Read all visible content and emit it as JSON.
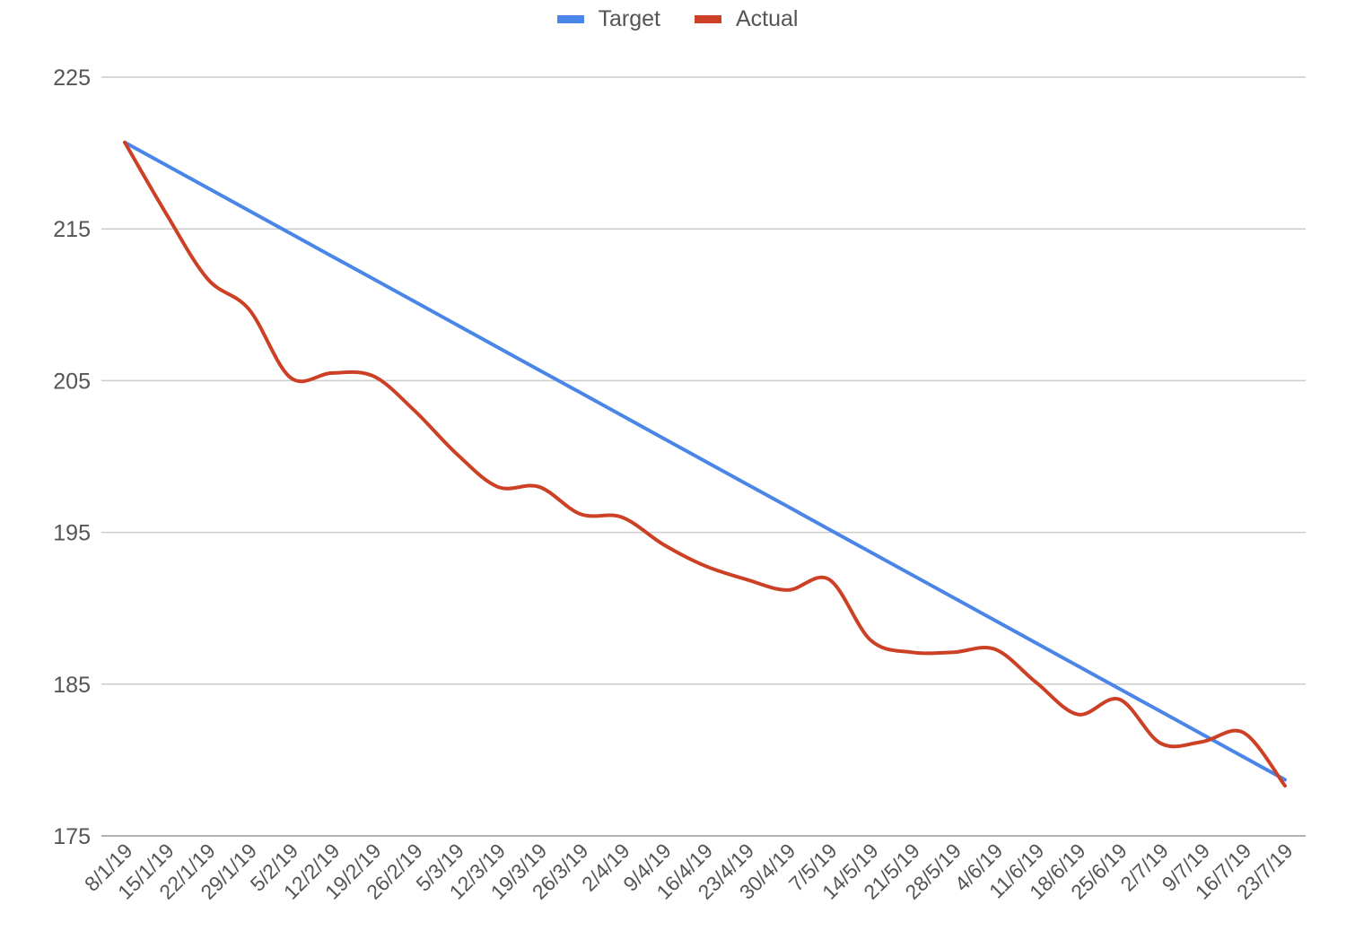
{
  "chart_data": {
    "type": "line",
    "title": "",
    "xlabel": "",
    "ylabel": "",
    "legend_position": "top-center",
    "grid": true,
    "ylim": [
      175,
      225
    ],
    "yticks": [
      "225",
      "215",
      "205",
      "195",
      "185",
      "175"
    ],
    "x": [
      "8/1/19",
      "15/1/19",
      "22/1/19",
      "29/1/19",
      "5/2/19",
      "12/2/19",
      "19/2/19",
      "26/2/19",
      "5/3/19",
      "12/3/19",
      "19/3/19",
      "26/3/19",
      "2/4/19",
      "9/4/19",
      "16/4/19",
      "23/4/19",
      "30/4/19",
      "7/5/19",
      "14/5/19",
      "21/5/19",
      "28/5/19",
      "4/6/19",
      "11/6/19",
      "18/6/19",
      "25/6/19",
      "2/7/19",
      "9/7/19",
      "16/7/19",
      "23/7/19"
    ],
    "series": [
      {
        "name": "Target",
        "color": "#4a86e8",
        "values": [
          220.7,
          219.2,
          217.7,
          216.2,
          214.7,
          213.2,
          211.7,
          210.2,
          208.7,
          207.2,
          205.7,
          204.2,
          202.7,
          201.2,
          199.7,
          198.2,
          196.7,
          195.2,
          193.7,
          192.2,
          190.7,
          189.2,
          187.7,
          186.2,
          184.7,
          183.2,
          181.7,
          180.2,
          178.7
        ]
      },
      {
        "name": "Actual",
        "color": "#cc4125",
        "values": [
          220.7,
          216.0,
          211.7,
          209.7,
          205.2,
          205.5,
          205.3,
          203.0,
          200.2,
          198.0,
          198.0,
          196.2,
          196.0,
          194.2,
          192.8,
          191.9,
          191.2,
          191.9,
          187.9,
          187.1,
          187.1,
          187.3,
          185.1,
          183.0,
          184.0,
          181.1,
          181.2,
          181.8,
          178.3
        ]
      }
    ]
  }
}
